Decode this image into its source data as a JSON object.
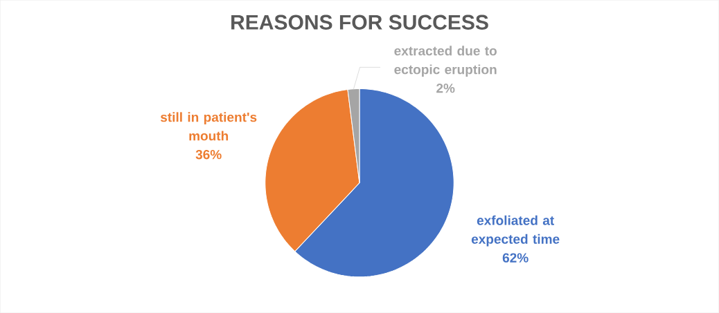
{
  "chart_data": {
    "type": "pie",
    "title": "REASONS FOR SUCCESS",
    "categories": [
      "exfoliated at expected time",
      "still in patient's mouth",
      "extracted due to ectopic eruption"
    ],
    "values": [
      62,
      36,
      2
    ],
    "colors": [
      "#4472c4",
      "#ed7d31",
      "#a5a5a5"
    ],
    "value_labels": [
      "62%",
      "36%",
      "2%"
    ],
    "legend": false
  }
}
